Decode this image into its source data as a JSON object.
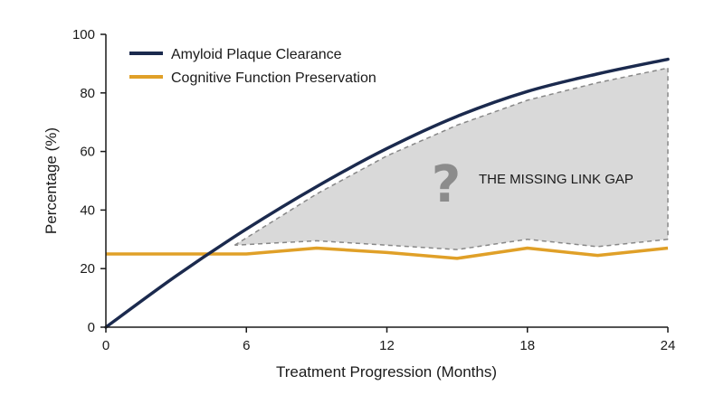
{
  "chart_data": {
    "type": "line",
    "title": "",
    "xlabel": "Treatment Progression (Months)",
    "ylabel": "Percentage (%)",
    "xlim": [
      0,
      24
    ],
    "ylim": [
      0,
      100
    ],
    "xticks": [
      "0",
      "6",
      "12",
      "18",
      "24"
    ],
    "yticks": [
      "0",
      "20",
      "40",
      "60",
      "80",
      "100"
    ],
    "grid": false,
    "legend": "top-left",
    "series": [
      {
        "name": "Amyloid Plaque Clearance",
        "color": "#1b2a4e",
        "x": [
          0,
          3,
          6,
          9,
          12,
          15,
          18,
          21,
          24
        ],
        "y": [
          0,
          17.5,
          33.5,
          48,
          61,
          72,
          80.5,
          86.5,
          91.5
        ]
      },
      {
        "name": "Cognitive Function Preservation",
        "color": "#e0a028",
        "x": [
          0,
          3,
          6,
          9,
          12,
          15,
          18,
          21,
          24
        ],
        "y": [
          25,
          25,
          25,
          27,
          25.5,
          23.5,
          27,
          24.5,
          27
        ]
      }
    ],
    "annotations": [
      {
        "text": "THE MISSING LINK GAP",
        "symbol": "?",
        "region": {
          "x": [
            5.5,
            9,
            12,
            15,
            18,
            21,
            24
          ],
          "upper": [
            28,
            45.5,
            58.5,
            69,
            77.5,
            83.5,
            88.5
          ],
          "lower": [
            28,
            29.5,
            28,
            26.5,
            30,
            27.5,
            30
          ]
        },
        "fill": "#d9d9d9",
        "stroke": "#888888"
      }
    ]
  }
}
